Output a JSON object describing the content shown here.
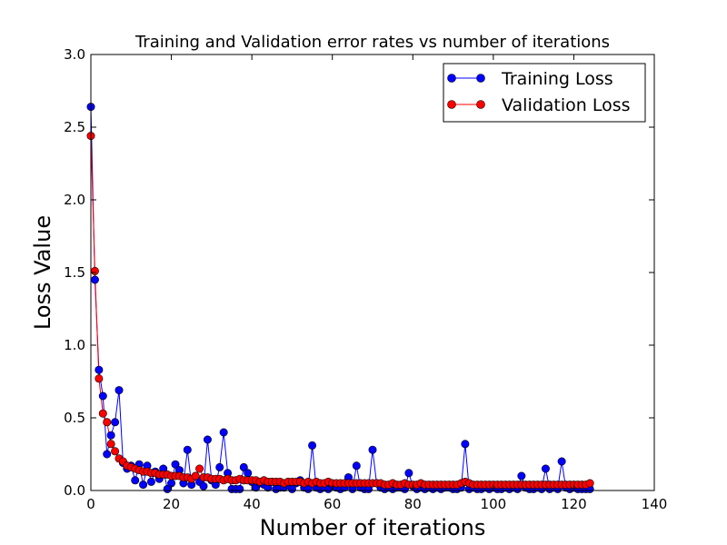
{
  "chart_data": {
    "type": "line",
    "title": "Training and Validation error rates vs number of iterations",
    "xlabel": "Number of iterations",
    "ylabel": "Loss Value",
    "xlim": [
      0,
      140
    ],
    "ylim": [
      0,
      3.0
    ],
    "xticks": [
      0,
      20,
      40,
      60,
      80,
      100,
      120,
      140
    ],
    "xtick_labels": [
      "0",
      "20",
      "40",
      "60",
      "80",
      "100",
      "120",
      "140"
    ],
    "yticks": [
      0,
      0.5,
      1.0,
      1.5,
      2.0,
      2.5,
      3.0
    ],
    "ytick_labels": [
      "0.0",
      "0.5",
      "1.0",
      "1.5",
      "2.0",
      "2.5",
      "3.0"
    ],
    "grid": false,
    "legend": "top-right",
    "series": [
      {
        "name": "Training Loss",
        "color": "#0000ff",
        "x": [
          0,
          1,
          2,
          3,
          4,
          5,
          6,
          7,
          8,
          9,
          10,
          11,
          12,
          13,
          14,
          15,
          16,
          17,
          18,
          19,
          20,
          21,
          22,
          23,
          24,
          25,
          26,
          27,
          28,
          29,
          30,
          31,
          32,
          33,
          34,
          35,
          36,
          37,
          38,
          39,
          40,
          41,
          42,
          43,
          44,
          45,
          46,
          47,
          48,
          49,
          50,
          51,
          52,
          53,
          54,
          55,
          56,
          57,
          58,
          59,
          60,
          61,
          62,
          63,
          64,
          65,
          66,
          67,
          68,
          69,
          70,
          71,
          72,
          73,
          74,
          75,
          76,
          77,
          78,
          79,
          80,
          81,
          82,
          83,
          84,
          85,
          86,
          87,
          88,
          89,
          90,
          91,
          92,
          93,
          94,
          95,
          96,
          97,
          98,
          99,
          100,
          101,
          102,
          103,
          104,
          105,
          106,
          107,
          108,
          109,
          110,
          111,
          112,
          113,
          114,
          115,
          116,
          117,
          118,
          119,
          120,
          121,
          122,
          123,
          124
        ],
        "values": [
          2.64,
          1.45,
          0.83,
          0.65,
          0.25,
          0.38,
          0.47,
          0.69,
          0.19,
          0.15,
          0.17,
          0.07,
          0.18,
          0.04,
          0.17,
          0.06,
          0.13,
          0.08,
          0.15,
          0.01,
          0.05,
          0.18,
          0.14,
          0.05,
          0.28,
          0.04,
          0.1,
          0.06,
          0.03,
          0.35,
          0.07,
          0.04,
          0.16,
          0.4,
          0.12,
          0.01,
          0.01,
          0.01,
          0.16,
          0.12,
          0.06,
          0.02,
          0.05,
          0.04,
          0.02,
          0.06,
          0.01,
          0.02,
          0.02,
          0.04,
          0.01,
          0.05,
          0.07,
          0.02,
          0.01,
          0.31,
          0.02,
          0.01,
          0.02,
          0.01,
          0.04,
          0.02,
          0.01,
          0.02,
          0.09,
          0.01,
          0.17,
          0.02,
          0.01,
          0.01,
          0.28,
          0.05,
          0.02,
          0.01,
          0.02,
          0.01,
          0.02,
          0.02,
          0.01,
          0.12,
          0.03,
          0.01,
          0.02,
          0.01,
          0.02,
          0.01,
          0.02,
          0.01,
          0.02,
          0.02,
          0.01,
          0.01,
          0.02,
          0.32,
          0.01,
          0.02,
          0.01,
          0.01,
          0.02,
          0.01,
          0.02,
          0.01,
          0.01,
          0.02,
          0.01,
          0.02,
          0.01,
          0.1,
          0.02,
          0.01,
          0.01,
          0.02,
          0.01,
          0.15,
          0.01,
          0.02,
          0.01,
          0.2,
          0.02,
          0.01,
          0.02,
          0.01,
          0.01,
          0.01,
          0.01
        ]
      },
      {
        "name": "Validation Loss",
        "color": "#ff0000",
        "x": [
          0,
          1,
          2,
          3,
          4,
          5,
          6,
          7,
          8,
          9,
          10,
          11,
          12,
          13,
          14,
          15,
          16,
          17,
          18,
          19,
          20,
          21,
          22,
          23,
          24,
          25,
          26,
          27,
          28,
          29,
          30,
          31,
          32,
          33,
          34,
          35,
          36,
          37,
          38,
          39,
          40,
          41,
          42,
          43,
          44,
          45,
          46,
          47,
          48,
          49,
          50,
          51,
          52,
          53,
          54,
          55,
          56,
          57,
          58,
          59,
          60,
          61,
          62,
          63,
          64,
          65,
          66,
          67,
          68,
          69,
          70,
          71,
          72,
          73,
          74,
          75,
          76,
          77,
          78,
          79,
          80,
          81,
          82,
          83,
          84,
          85,
          86,
          87,
          88,
          89,
          90,
          91,
          92,
          93,
          94,
          95,
          96,
          97,
          98,
          99,
          100,
          101,
          102,
          103,
          104,
          105,
          106,
          107,
          108,
          109,
          110,
          111,
          112,
          113,
          114,
          115,
          116,
          117,
          118,
          119,
          120,
          121,
          122,
          123,
          124
        ],
        "values": [
          2.44,
          1.51,
          0.77,
          0.53,
          0.47,
          0.32,
          0.27,
          0.22,
          0.2,
          0.17,
          0.16,
          0.15,
          0.14,
          0.13,
          0.13,
          0.12,
          0.12,
          0.11,
          0.11,
          0.11,
          0.1,
          0.1,
          0.1,
          0.09,
          0.09,
          0.08,
          0.1,
          0.15,
          0.09,
          0.09,
          0.08,
          0.08,
          0.08,
          0.07,
          0.08,
          0.07,
          0.07,
          0.08,
          0.07,
          0.07,
          0.07,
          0.07,
          0.06,
          0.07,
          0.06,
          0.06,
          0.06,
          0.06,
          0.05,
          0.06,
          0.06,
          0.06,
          0.06,
          0.05,
          0.06,
          0.05,
          0.06,
          0.05,
          0.05,
          0.06,
          0.05,
          0.05,
          0.05,
          0.05,
          0.05,
          0.05,
          0.05,
          0.05,
          0.05,
          0.05,
          0.05,
          0.05,
          0.05,
          0.04,
          0.04,
          0.05,
          0.04,
          0.04,
          0.05,
          0.04,
          0.04,
          0.04,
          0.05,
          0.04,
          0.04,
          0.04,
          0.04,
          0.04,
          0.04,
          0.04,
          0.04,
          0.04,
          0.05,
          0.06,
          0.05,
          0.04,
          0.04,
          0.04,
          0.04,
          0.04,
          0.04,
          0.04,
          0.04,
          0.04,
          0.04,
          0.04,
          0.04,
          0.04,
          0.04,
          0.04,
          0.04,
          0.04,
          0.04,
          0.04,
          0.04,
          0.04,
          0.04,
          0.04,
          0.04,
          0.04,
          0.04,
          0.04,
          0.04,
          0.04,
          0.05
        ]
      }
    ]
  }
}
